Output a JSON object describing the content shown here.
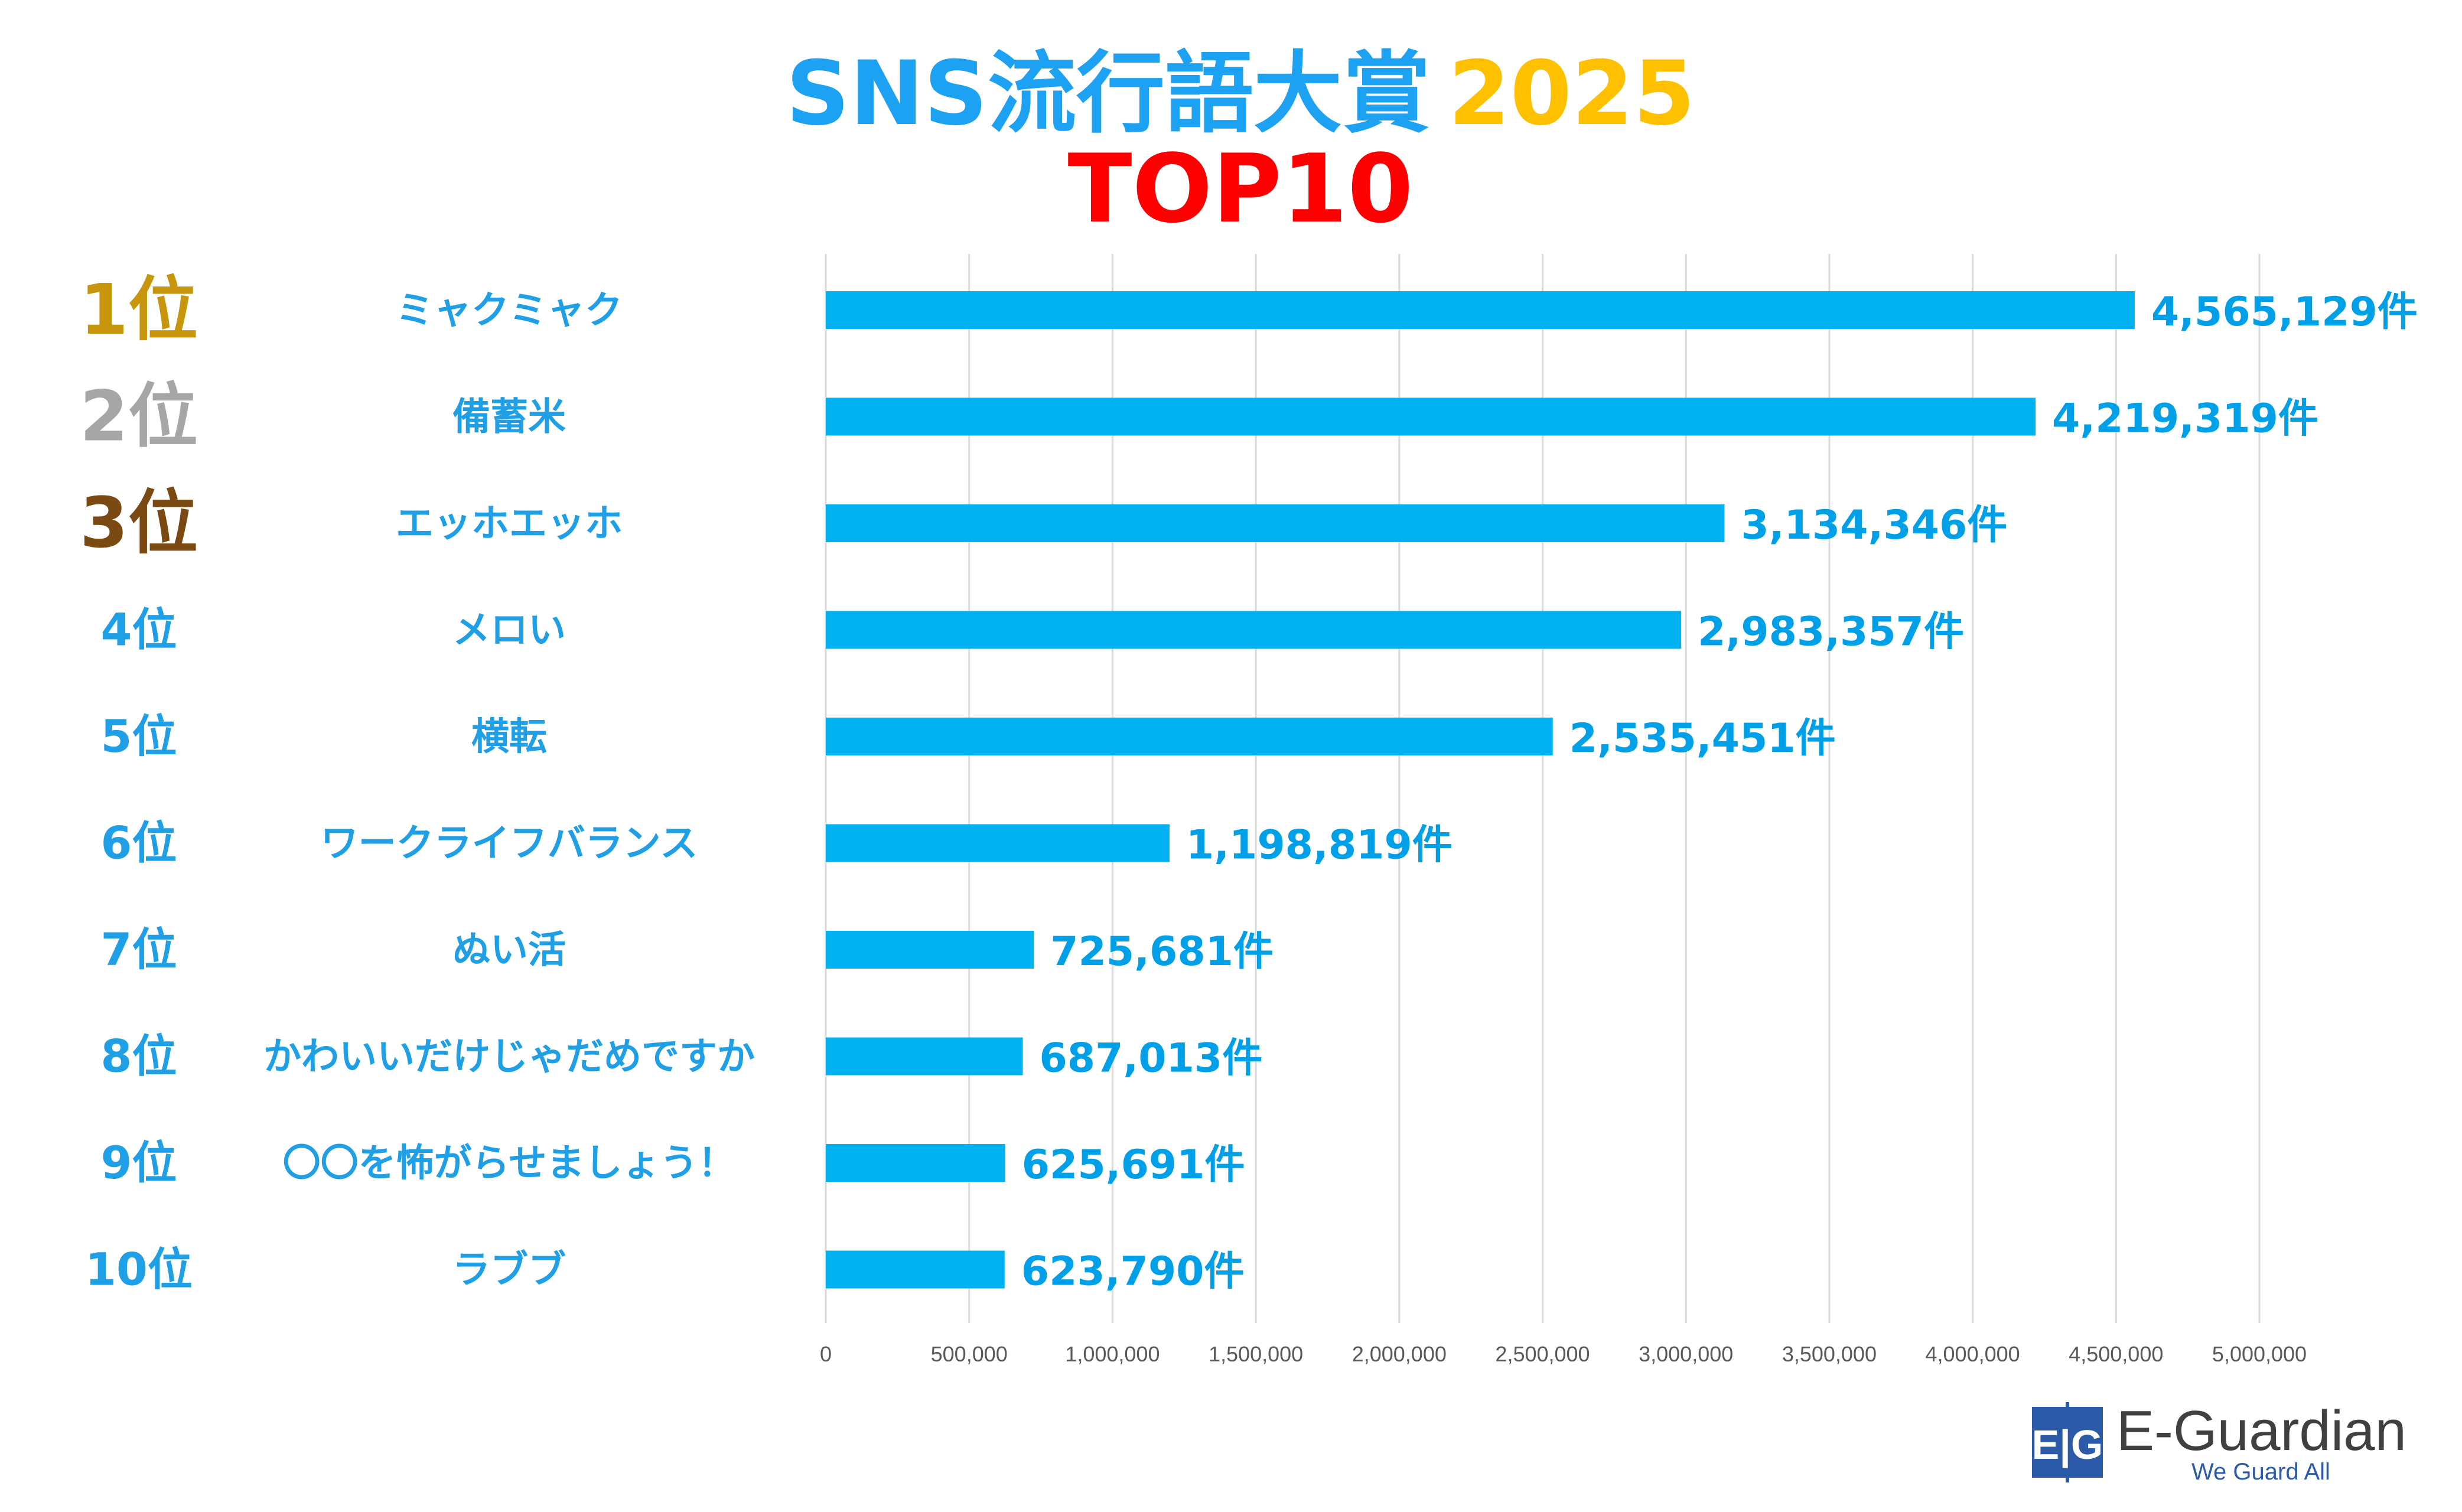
{
  "title": {
    "main": "SNS流行語大賞",
    "year": "2025",
    "sub": "TOP10",
    "main_color": "#1da1f2",
    "year_color": "#ffc000",
    "sub_color": "#ff0000"
  },
  "colors": {
    "bar": "#00b0f0",
    "value_text": "#00a0e9",
    "rank_default": "#1f9fe6",
    "rank_1": "#c8960c",
    "rank_2": "#a6a6a6",
    "rank_3": "#7b4a12",
    "grid": "#d9d9d9",
    "tick_text": "#595959"
  },
  "chart_data": {
    "type": "bar",
    "orientation": "horizontal",
    "ranks": [
      "1位",
      "2位",
      "3位",
      "4位",
      "5位",
      "6位",
      "7位",
      "8位",
      "9位",
      "10位"
    ],
    "categories": [
      "ミャクミャク",
      "備蓄米",
      "エッホエッホ",
      "メロい",
      "横転",
      "ワークライフバランス",
      "ぬい活",
      "かわいいだけじゃだめですか",
      "〇〇を怖がらせましょう！",
      "ラブブ"
    ],
    "values": [
      4565129,
      4219319,
      3134346,
      2983357,
      2535451,
      1198819,
      725681,
      687013,
      625691,
      623790
    ],
    "value_labels": [
      "4,565,129件",
      "4,219,319件",
      "3,134,346件",
      "2,983,357件",
      "2,535,451件",
      "1,198,819件",
      "725,681件",
      "687,013件",
      "625,691件",
      "623,790件"
    ],
    "xlim": [
      0,
      5000000
    ],
    "xticks": [
      0,
      500000,
      1000000,
      1500000,
      2000000,
      2500000,
      3000000,
      3500000,
      4000000,
      4500000,
      5000000
    ],
    "xtick_labels": [
      "0",
      "500,000",
      "1,000,000",
      "1,500,000",
      "2,000,000",
      "2,500,000",
      "3,000,000",
      "3,500,000",
      "4,000,000",
      "4,500,000",
      "5,000,000"
    ],
    "grid": true,
    "legend": false
  },
  "logo": {
    "mark": "E|G",
    "name": "E-Guardian",
    "tagline": "We Guard All",
    "mark_color": "#2a5aa8",
    "name_color": "#404040",
    "tagline_color": "#2a5aa8"
  }
}
